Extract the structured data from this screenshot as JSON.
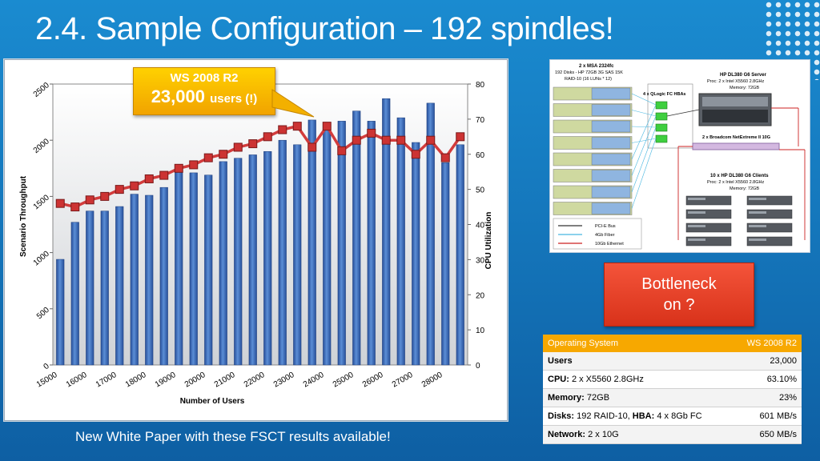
{
  "slide": {
    "title": "2.4. Sample Configuration – 192 spindles!",
    "footer": "New White Paper with these FSCT results available!"
  },
  "callout": {
    "line1": "WS 2008 R2",
    "value": "23,000",
    "unit": "users (!)"
  },
  "bottleneck": {
    "line1": "Bottleneck",
    "line2": "on ?"
  },
  "diagram": {
    "storage_title": "2 x MSA 2324fc",
    "storage_sub1": "192 Disks - HP 72GB 3G SAS 15K",
    "storage_sub2": "RAID-10 (16 LUNs * 12)",
    "hba_label": "4 x QLogic FC HBAs",
    "server_title": "HP DL380 G6 Server",
    "server_sub1": "Proc: 2 x Intel X5560 2.8GHz",
    "server_sub2": "Memory: 72GB",
    "nic_label": "2 x Broadcom NetExtreme II 10G",
    "clients_title": "10 x HP DL380 G6 Clients",
    "clients_sub1": "Proc: 2 x Intel X5560 2.8GHz",
    "clients_sub2": "Memory: 72GB",
    "legend": [
      "PCI-E Bus",
      "4Gb Fiber",
      "10Gb Ethernet"
    ],
    "colors": {
      "pcie": "#333333",
      "fiber": "#47b6e0",
      "ethernet": "#cc2222"
    }
  },
  "config_table": {
    "header": [
      "Operating System",
      "WS 2008 R2"
    ],
    "rows": [
      {
        "label": "Users",
        "value": "",
        "result": "23,000"
      },
      {
        "label": "CPU:",
        "value": "2 x X5560 2.8GHz",
        "result": "63.10%"
      },
      {
        "label": "Memory:",
        "value": "72GB",
        "result": "23%"
      },
      {
        "label": "Disks:",
        "value": "192 RAID-10, ",
        "label2": "HBA:",
        "value2": "4 x 8Gb FC",
        "result": "601 MB/s"
      },
      {
        "label": "Network:",
        "value": "2 x 10G",
        "result": "650 MB/s"
      }
    ]
  },
  "chart_data": {
    "type": "bar",
    "x": [
      15000,
      15500,
      16000,
      16500,
      17000,
      17500,
      18000,
      18500,
      19000,
      19500,
      20000,
      20500,
      21000,
      21500,
      22000,
      22500,
      23000,
      23500,
      24000,
      24500,
      25000,
      25500,
      26000,
      26500,
      27000,
      27500,
      28000,
      28500
    ],
    "x_ticks": [
      15000,
      16000,
      17000,
      18000,
      19000,
      20000,
      21000,
      22000,
      23000,
      24000,
      25000,
      26000,
      27000,
      28000
    ],
    "series": [
      {
        "values": [
          940,
          1270,
          1370,
          1370,
          1410,
          1520,
          1510,
          1580,
          1720,
          1710,
          1690,
          1810,
          1840,
          1870,
          1900,
          2000,
          1960,
          2180,
          2160,
          2170,
          2260,
          2170,
          2370,
          2200,
          1980,
          2330,
          1800,
          1960
        ],
        "axis": "left",
        "color": "#3a6fc4"
      },
      {
        "values": [
          46,
          45,
          47,
          48,
          50,
          51,
          53,
          54,
          56,
          57,
          59,
          60,
          62,
          63,
          65,
          67,
          68,
          62,
          68,
          61,
          64,
          66,
          64,
          64,
          60,
          64,
          59,
          65
        ],
        "axis": "right",
        "color": "#d23c3c"
      }
    ],
    "xlabel": "Number of Users",
    "ylabel": "Scenario Throughput",
    "y2label": "CPU Utilization",
    "ylim": [
      0,
      2500
    ],
    "y2lim": [
      0,
      80
    ],
    "y_ticks": [
      0,
      500,
      1000,
      1500,
      2000,
      2500
    ],
    "y2_ticks": [
      0,
      10,
      20,
      30,
      40,
      50,
      60,
      70,
      80
    ],
    "grid": false,
    "legend": "none"
  }
}
